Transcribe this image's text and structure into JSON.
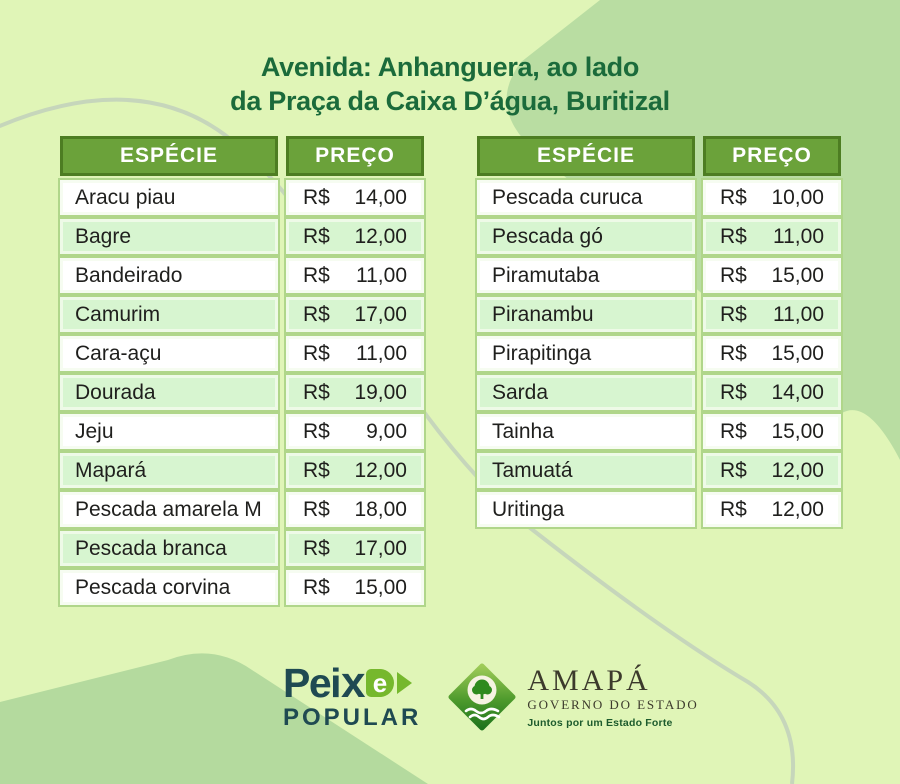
{
  "title": {
    "line1": "Avenida: Anhanguera, ao lado",
    "line2": "da Praça da Caixa D’água, Buritizal"
  },
  "tables": [
    {
      "currency": "R$",
      "headers": {
        "species": "ESPÉCIE",
        "price": "PREÇO"
      },
      "rows": [
        {
          "species": "Aracu piau",
          "price": "14,00"
        },
        {
          "species": "Bagre",
          "price": "12,00"
        },
        {
          "species": "Bandeirado",
          "price": "11,00"
        },
        {
          "species": "Camurim",
          "price": "17,00"
        },
        {
          "species": "Cara-açu",
          "price": "11,00"
        },
        {
          "species": "Dourada",
          "price": "19,00"
        },
        {
          "species": "Jeju",
          "price": "9,00"
        },
        {
          "species": "Mapará",
          "price": "12,00"
        },
        {
          "species": "Pescada amarela M",
          "price": "18,00"
        },
        {
          "species": "Pescada branca",
          "price": "17,00"
        },
        {
          "species": "Pescada corvina",
          "price": "15,00"
        }
      ]
    },
    {
      "currency": "R$",
      "headers": {
        "species": "ESPÉCIE",
        "price": "PREÇO"
      },
      "rows": [
        {
          "species": "Pescada curuca",
          "price": "10,00"
        },
        {
          "species": "Pescada gó",
          "price": "11,00"
        },
        {
          "species": "Piramutaba",
          "price": "15,00"
        },
        {
          "species": "Piranambu",
          "price": "11,00"
        },
        {
          "species": "Pirapitinga",
          "price": "15,00"
        },
        {
          "species": "Sarda",
          "price": "14,00"
        },
        {
          "species": "Tainha",
          "price": "15,00"
        },
        {
          "species": "Tamuatá",
          "price": "12,00"
        },
        {
          "species": "Uritinga",
          "price": "12,00"
        }
      ]
    }
  ],
  "footer": {
    "peixe": {
      "pei": "Pei",
      "x": "x",
      "e": "e",
      "popular": "POPULAR"
    },
    "amapa": {
      "name": "AMAPÁ",
      "subtitle": "GOVERNO DO ESTADO",
      "tagline": "Juntos por um Estado Forte"
    }
  },
  "colors": {
    "background": "#e0f5b7",
    "shape_green": "#b9dda2",
    "title_green": "#1b6b3b",
    "header_green": "#6ba23a",
    "header_border": "#4d7d22",
    "row_alt_mint": "#d7f5d0",
    "cell_outline": "#b0d68a",
    "brand_teal": "#1f4a52",
    "brand_green": "#76b82d"
  }
}
